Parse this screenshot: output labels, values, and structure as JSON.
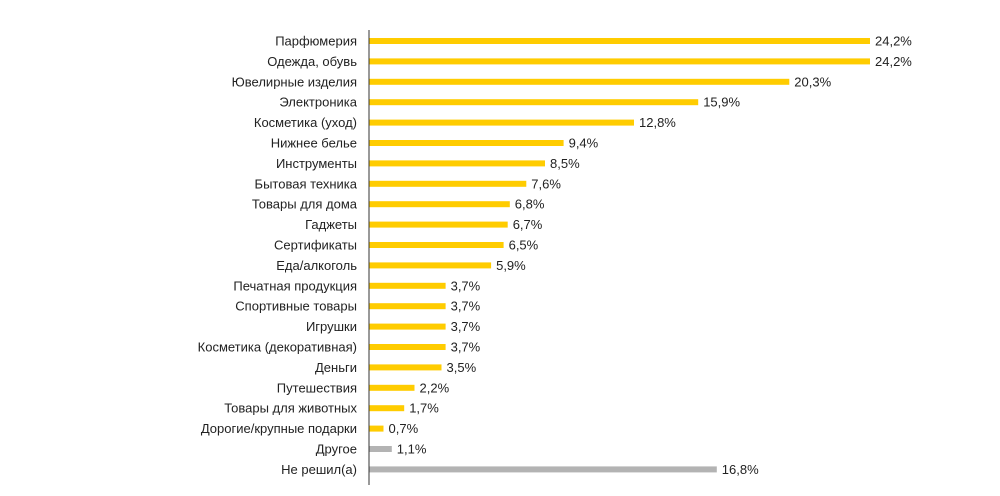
{
  "chart_data": {
    "type": "bar",
    "orientation": "horizontal",
    "title": "",
    "xlabel": "",
    "ylabel": "",
    "grid": false,
    "legend": "none",
    "xlim": [
      0,
      24.2
    ],
    "colors": {
      "primary": "#FFCC00",
      "secondary": "#B3B3B3",
      "axis": "#333333"
    },
    "categories": [
      "Парфюмерия",
      "Одежда, обувь",
      "Ювелирные изделия",
      "Электроника",
      "Косметика (уход)",
      "Нижнее белье",
      "Инструменты",
      "Бытовая техника",
      "Товары для дома",
      "Гаджеты",
      "Сертификаты",
      "Еда/алкоголь",
      "Печатная продукция",
      "Спортивные товары",
      "Игрушки",
      "Косметика (декоративная)",
      "Деньги",
      "Путешествия",
      "Товары для животных",
      "Дорогие/крупные подарки",
      "Другое",
      "Не решил(а)"
    ],
    "values": [
      24.2,
      24.2,
      20.3,
      15.9,
      12.8,
      9.4,
      8.5,
      7.6,
      6.8,
      6.7,
      6.5,
      5.9,
      3.7,
      3.7,
      3.7,
      3.7,
      3.5,
      2.2,
      1.7,
      0.7,
      1.1,
      16.8
    ],
    "value_labels": [
      "24,2%",
      "24,2%",
      "20,3%",
      "15,9%",
      "12,8%",
      "9,4%",
      "8,5%",
      "7,6%",
      "6,8%",
      "6,7%",
      "6,5%",
      "5,9%",
      "3,7%",
      "3,7%",
      "3,7%",
      "3,7%",
      "3,5%",
      "2,2%",
      "1,7%",
      "0,7%",
      "1,1%",
      "16,8%"
    ],
    "bar_colors": [
      "primary",
      "primary",
      "primary",
      "primary",
      "primary",
      "primary",
      "primary",
      "primary",
      "primary",
      "primary",
      "primary",
      "primary",
      "primary",
      "primary",
      "primary",
      "primary",
      "primary",
      "primary",
      "primary",
      "primary",
      "secondary",
      "secondary"
    ]
  }
}
